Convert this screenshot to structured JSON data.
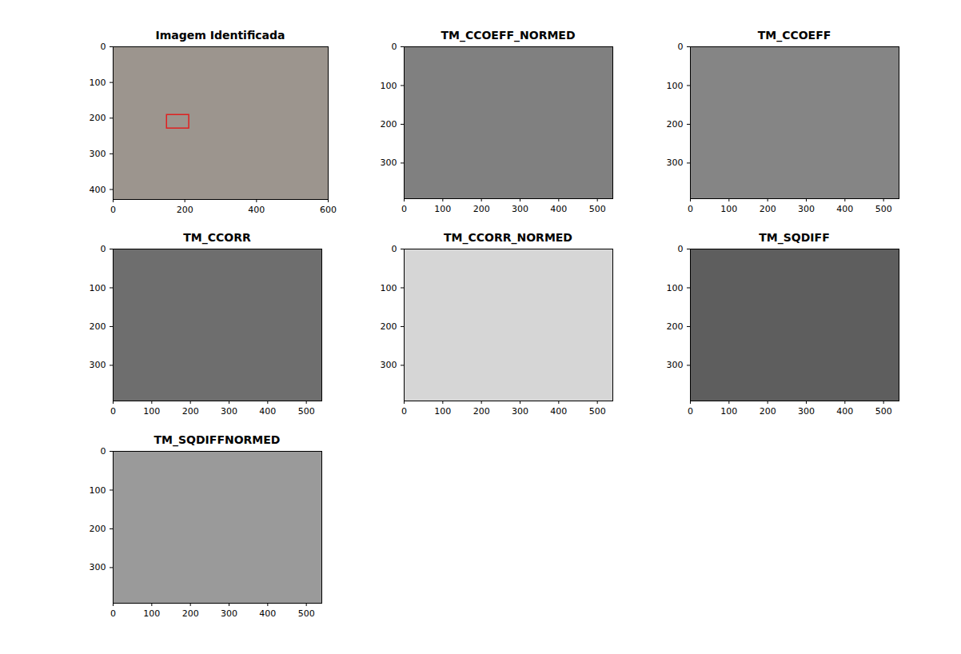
{
  "chart_data": [
    {
      "type": "image",
      "title": "Imagem Identificada",
      "xlim": [
        0,
        600
      ],
      "ylim": [
        0,
        428
      ],
      "xticks": [
        0,
        200,
        400,
        600
      ],
      "yticks": [
        0,
        100,
        200,
        300,
        400
      ],
      "color": "#9c958e",
      "box": {
        "x": [
          150,
          212
        ],
        "y": [
          191,
          229
        ],
        "color": "#e02020"
      }
    },
    {
      "type": "image",
      "title": "TM_CCOEFF_NORMED",
      "xlim": [
        0,
        540
      ],
      "ylim": [
        0,
        392
      ],
      "xticks": [
        0,
        100,
        200,
        300,
        400,
        500
      ],
      "yticks": [
        0,
        100,
        200,
        300
      ],
      "color": "#808080"
    },
    {
      "type": "image",
      "title": "TM_CCOEFF",
      "xlim": [
        0,
        540
      ],
      "ylim": [
        0,
        392
      ],
      "xticks": [
        0,
        100,
        200,
        300,
        400,
        500
      ],
      "yticks": [
        0,
        100,
        200,
        300
      ],
      "color": "#858585"
    },
    {
      "type": "image",
      "title": "TM_CCORR",
      "xlim": [
        0,
        540
      ],
      "ylim": [
        0,
        392
      ],
      "xticks": [
        0,
        100,
        200,
        300,
        400,
        500
      ],
      "yticks": [
        0,
        100,
        200,
        300
      ],
      "color": "#6e6e6e"
    },
    {
      "type": "image",
      "title": "TM_CCORR_NORMED",
      "xlim": [
        0,
        540
      ],
      "ylim": [
        0,
        392
      ],
      "xticks": [
        0,
        100,
        200,
        300,
        400,
        500
      ],
      "yticks": [
        0,
        100,
        200,
        300
      ],
      "color": "#d6d6d6"
    },
    {
      "type": "image",
      "title": "TM_SQDIFF",
      "xlim": [
        0,
        540
      ],
      "ylim": [
        0,
        392
      ],
      "xticks": [
        0,
        100,
        200,
        300,
        400,
        500
      ],
      "yticks": [
        0,
        100,
        200,
        300
      ],
      "color": "#5e5e5e"
    },
    {
      "type": "image",
      "title": "TM_SQDIFFNORMED",
      "xlim": [
        0,
        540
      ],
      "ylim": [
        0,
        392
      ],
      "xticks": [
        0,
        100,
        200,
        300,
        400,
        500
      ],
      "yticks": [
        0,
        100,
        200,
        300
      ],
      "color": "#9a9a9a"
    }
  ]
}
